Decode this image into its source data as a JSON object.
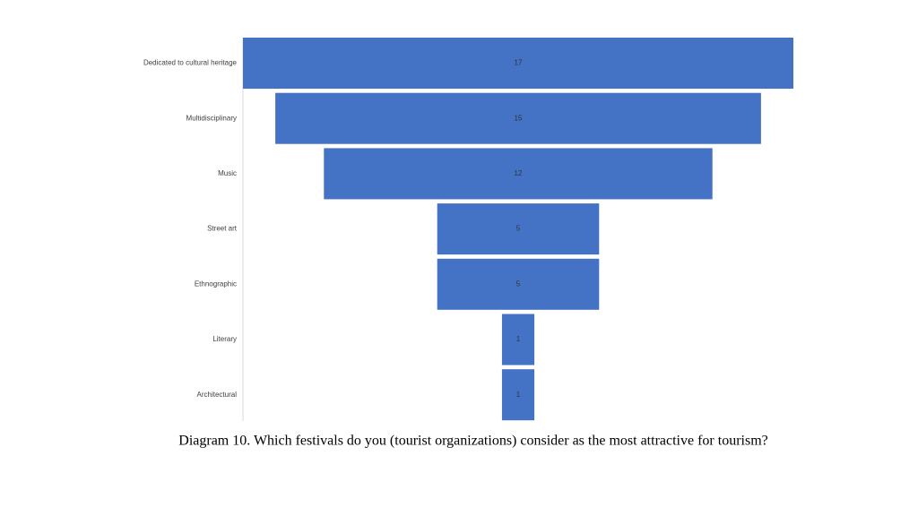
{
  "chart_data": {
    "type": "funnel",
    "categories": [
      "Dedicated to cultural heritage",
      "Multidisciplinary",
      "Music",
      "Street art",
      "Ethnographic",
      "Literary",
      "Architectural"
    ],
    "values": [
      17,
      15,
      12,
      5,
      5,
      1,
      1
    ],
    "color": "#4472c4",
    "caption": "Diagram 10. Which festivals do you (tourist organizations) consider as the most attractive for tourism?"
  }
}
